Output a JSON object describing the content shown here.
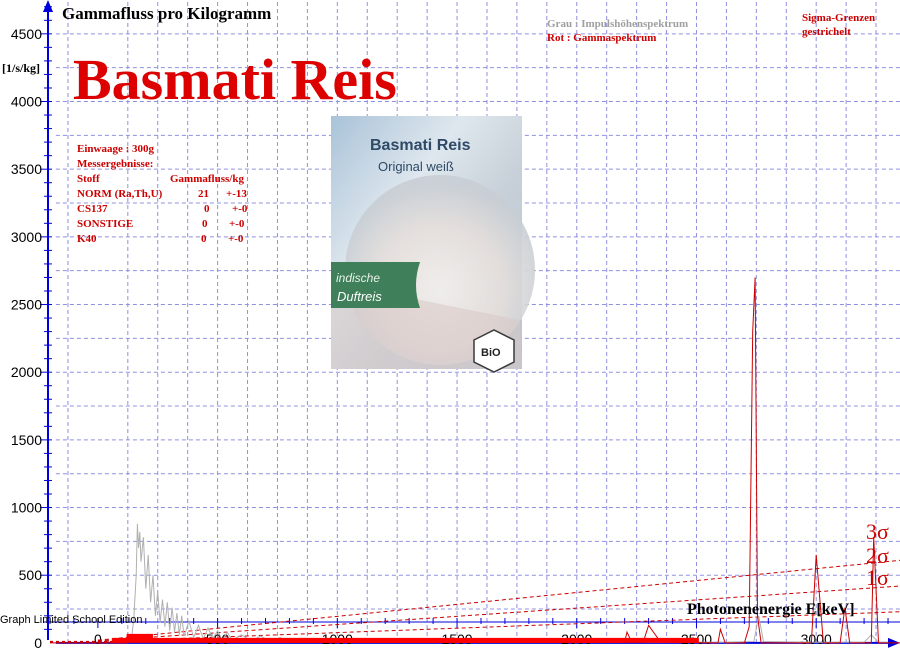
{
  "chart_data": {
    "type": "line",
    "title": "Gammafluss pro Kilogramm",
    "ylabel": "[1/s/kg]",
    "xlabel": "Photonenenergie   E[keV]",
    "headline": "Basmati Reis",
    "xlim": [
      -200,
      3350
    ],
    "ylim": [
      -60,
      4750
    ],
    "x_ticks": [
      0,
      500,
      1000,
      1500,
      2000,
      2500,
      3000
    ],
    "y_ticks": [
      0,
      500,
      1000,
      1500,
      2000,
      2500,
      3000,
      3500,
      4000,
      4500
    ],
    "grid": true,
    "legend": {
      "position": "top-right",
      "gray": "Grau : Impulshöhenspektrum",
      "red": "Rot   : Gammaspektrum",
      "sigma_line1": "Sigma-Grenzen",
      "sigma_line2": "gestrichelt"
    },
    "sigma_labels": [
      "3σ",
      "2σ",
      "1σ"
    ],
    "sigma_lines": [
      {
        "level": 3,
        "y_at_0": 20,
        "y_at_3350": 610
      },
      {
        "level": 2,
        "y_at_0": 15,
        "y_at_3350": 420
      },
      {
        "level": 1,
        "y_at_0": 10,
        "y_at_3350": 230
      }
    ],
    "series": [
      {
        "name": "Impulshöhenspektrum",
        "color": "#b0b0b0",
        "points": [
          [
            140,
            20
          ],
          [
            150,
            180
          ],
          [
            160,
            500
          ],
          [
            165,
            880
          ],
          [
            170,
            700
          ],
          [
            175,
            820
          ],
          [
            180,
            600
          ],
          [
            190,
            780
          ],
          [
            200,
            400
          ],
          [
            210,
            650
          ],
          [
            220,
            300
          ],
          [
            230,
            500
          ],
          [
            240,
            200
          ],
          [
            250,
            380
          ],
          [
            260,
            150
          ],
          [
            270,
            320
          ],
          [
            280,
            120
          ],
          [
            290,
            300
          ],
          [
            300,
            90
          ],
          [
            310,
            260
          ],
          [
            320,
            80
          ],
          [
            330,
            220
          ],
          [
            340,
            60
          ],
          [
            350,
            200
          ],
          [
            360,
            50
          ],
          [
            380,
            160
          ],
          [
            400,
            40
          ],
          [
            420,
            130
          ],
          [
            440,
            30
          ],
          [
            460,
            110
          ],
          [
            480,
            30
          ],
          [
            500,
            90
          ],
          [
            520,
            20
          ],
          [
            540,
            80
          ],
          [
            560,
            20
          ],
          [
            600,
            60
          ],
          [
            640,
            15
          ],
          [
            680,
            50
          ],
          [
            720,
            10
          ],
          [
            760,
            40
          ],
          [
            800,
            10
          ],
          [
            860,
            30
          ],
          [
            900,
            10
          ],
          [
            960,
            25
          ],
          [
            1000,
            5
          ],
          [
            1100,
            20
          ],
          [
            1200,
            5
          ],
          [
            1300,
            15
          ],
          [
            1350,
            5
          ],
          [
            1400,
            10
          ],
          [
            1500,
            5
          ],
          [
            1700,
            5
          ],
          [
            2000,
            5
          ],
          [
            2200,
            10
          ],
          [
            2300,
            5
          ],
          [
            2600,
            5
          ],
          [
            2740,
            10
          ],
          [
            2760,
            200
          ],
          [
            2780,
            10
          ],
          [
            3000,
            5
          ],
          [
            3100,
            5
          ],
          [
            3200,
            5
          ],
          [
            3230,
            60
          ],
          [
            3260,
            5
          ],
          [
            3300,
            5
          ]
        ]
      },
      {
        "name": "Gammaspektrum",
        "color": "#cc0000",
        "points": [
          [
            -200,
            0
          ],
          [
            60,
            0
          ],
          [
            80,
            0
          ],
          [
            120,
            0
          ],
          [
            140,
            10
          ],
          [
            160,
            30
          ],
          [
            180,
            20
          ],
          [
            220,
            25
          ],
          [
            300,
            10
          ],
          [
            500,
            5
          ],
          [
            1000,
            3
          ],
          [
            2000,
            3
          ],
          [
            2200,
            5
          ],
          [
            2210,
            80
          ],
          [
            2230,
            5
          ],
          [
            2280,
            20
          ],
          [
            2300,
            130
          ],
          [
            2340,
            30
          ],
          [
            2380,
            5
          ],
          [
            2590,
            0
          ],
          [
            2600,
            100
          ],
          [
            2620,
            0
          ],
          [
            2700,
            0
          ],
          [
            2720,
            120
          ],
          [
            2735,
            2300
          ],
          [
            2745,
            2700
          ],
          [
            2755,
            200
          ],
          [
            2770,
            0
          ],
          [
            2980,
            0
          ],
          [
            3000,
            650
          ],
          [
            3030,
            0
          ],
          [
            3100,
            0
          ],
          [
            3120,
            260
          ],
          [
            3140,
            0
          ],
          [
            3230,
            0
          ],
          [
            3240,
            780
          ],
          [
            3260,
            0
          ],
          [
            3350,
            0
          ]
        ]
      }
    ],
    "baseline_band": {
      "x_start": 60,
      "x_end": 2510,
      "color": "#ff0000"
    }
  },
  "info_box": {
    "line1": "Einwaage : 300g",
    "line2": "Messergebnisse:",
    "header_stoff": "Stoff",
    "header_fluss": "Gammafluss/kg",
    "rows": [
      {
        "name": "NORM (Ra,Th,U)",
        "value": "21",
        "err": "+-13"
      },
      {
        "name": "CS137",
        "value": "0",
        "err": "+-0"
      },
      {
        "name": "SONSTIGE",
        "value": "0",
        "err": "+-0"
      },
      {
        "name": "K40",
        "value": "0",
        "err": "+-0"
      }
    ]
  },
  "product_photo": {
    "brand": "Basmati Reis",
    "variant": "Original weiß",
    "tag_line1": "indische",
    "tag_line2": "Duftreis",
    "seal": "BiO"
  },
  "footer": "Graph Limited School Edition",
  "colors": {
    "grid": "#9090e0",
    "axis": "#0000dd",
    "gray": "#b0b0b0",
    "red": "#cc0000"
  }
}
